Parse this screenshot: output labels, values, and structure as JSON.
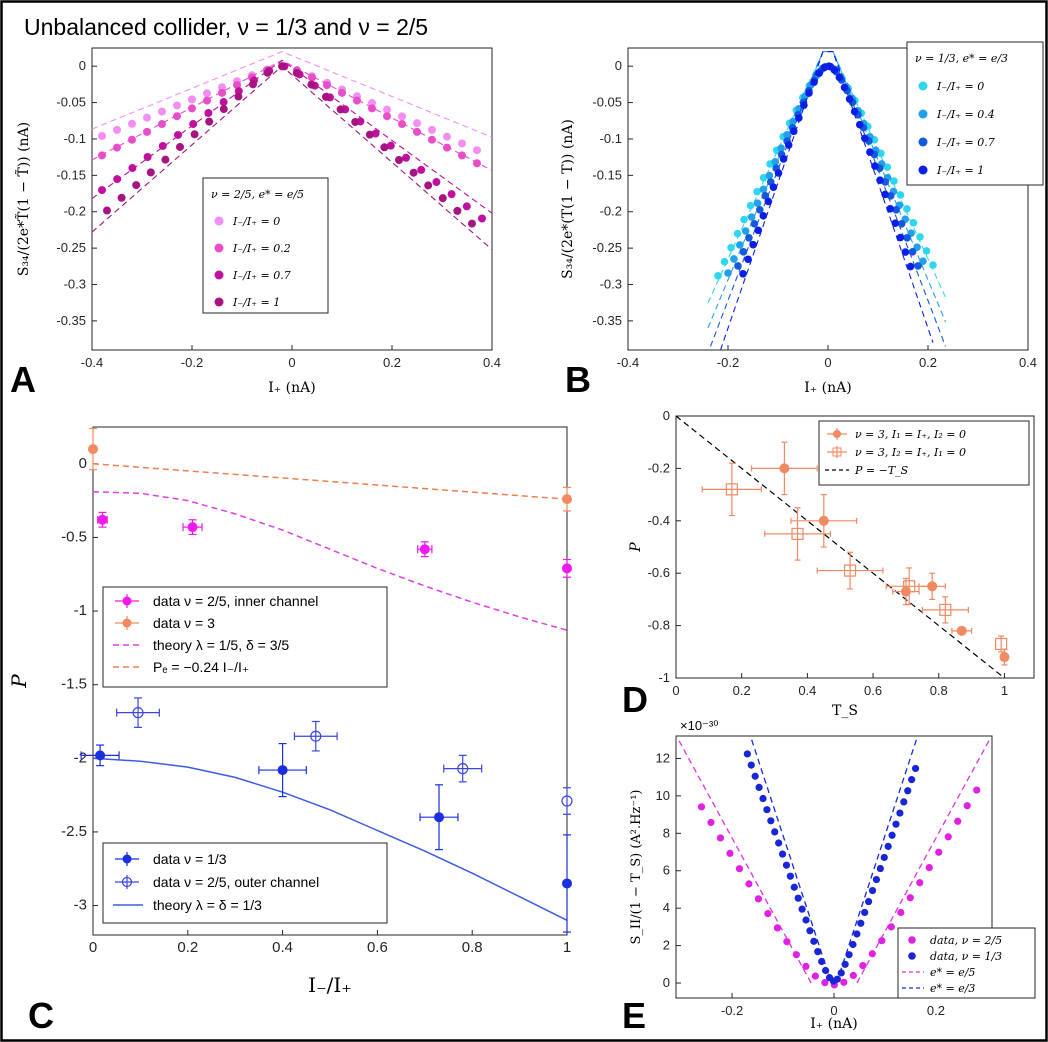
{
  "title": "Unbalanced collider, ν = 1/3 and ν = 2/5",
  "chart_data": [
    {
      "panel": "A",
      "type": "scatter",
      "xlabel": "I₊ (nA)",
      "ylabel": "S₃₄/(2e*T̃(1 − T̃)) (nA)",
      "xlim": [
        -0.4,
        0.4
      ],
      "ylim": [
        -0.39,
        0.025
      ],
      "xticks": [
        -0.4,
        -0.2,
        0,
        0.2,
        0.4
      ],
      "yticks": [
        0,
        -0.05,
        -0.1,
        -0.15,
        -0.2,
        -0.25,
        -0.3,
        -0.35
      ],
      "legend_title": "ν = 2/5, e* = e/5",
      "legend_position": "center",
      "series": [
        {
          "name": "I₋/I₊ = 0",
          "color": "#f58ef3",
          "xmin": -0.38,
          "xmax": 0.37,
          "x0": -0.02,
          "slope_left": 0.28,
          "slope_right": -0.31,
          "round": 0.018,
          "fit_slope": 0.28,
          "fit_peak": 0.02
        },
        {
          "name": "I₋/I₊ = 0.2",
          "color": "#e94ec9",
          "xmin": -0.38,
          "xmax": 0.37,
          "x0": -0.02,
          "slope_left": 0.36,
          "slope_right": -0.36,
          "round": 0.02,
          "fit_slope": 0.36,
          "fit_peak": 0.008
        },
        {
          "name": "I₋/I₊ = 0.7",
          "color": "#c0109f",
          "xmin": -0.38,
          "xmax": 0.38,
          "x0": -0.02,
          "slope_left": 0.5,
          "slope_right": -0.55,
          "round": 0.02,
          "fit_slope": 0.5,
          "fit_peak": 0.008
        },
        {
          "name": "I₋/I₊ = 1",
          "color": "#a6157f",
          "xmin": -0.37,
          "xmax": 0.36,
          "x0": -0.02,
          "slope_left": 0.6,
          "slope_right": -0.6,
          "round": 0.02,
          "fit_slope": 0.6,
          "fit_peak": 0.0
        }
      ]
    },
    {
      "panel": "B",
      "type": "scatter",
      "xlabel": "I₊ (nA)",
      "ylabel": "S₃₄/(2e*(T(1 − T)) (nA)",
      "xlim": [
        -0.4,
        0.4
      ],
      "ylim": [
        -0.39,
        0.025
      ],
      "xticks": [
        -0.4,
        -0.2,
        0,
        0.2,
        0.4
      ],
      "yticks": [
        0,
        -0.05,
        -0.1,
        -0.15,
        -0.2,
        -0.25,
        -0.3,
        -0.35
      ],
      "legend_title": "ν = 1/3, e* = e/3",
      "legend_position": "top-right",
      "series": [
        {
          "name": "I₋/I₊ = 0",
          "color": "#2fd7ee",
          "xmin": -0.22,
          "xmax": 0.21,
          "slope": 1.5
        },
        {
          "name": "I₋/I₊ = 0.4",
          "color": "#22a0ec",
          "xmin": -0.2,
          "xmax": 0.19,
          "slope": 1.65
        },
        {
          "name": "I₋/I₊ = 0.7",
          "color": "#1458dc",
          "xmin": -0.18,
          "xmax": 0.18,
          "slope": 1.8
        },
        {
          "name": "I₋/I₊ = 1",
          "color": "#0a1ee6",
          "xmin": -0.17,
          "xmax": 0.165,
          "slope": 2.0
        }
      ]
    },
    {
      "panel": "C",
      "type": "scatter",
      "xlabel": "I₋/I₊",
      "ylabel": "P",
      "xlim": [
        0,
        1
      ],
      "ylim": [
        -3.2,
        0.25
      ],
      "xticks": [
        0,
        0.2,
        0.4,
        0.6,
        0.8,
        1
      ],
      "yticks": [
        0,
        -0.5,
        -1,
        -1.5,
        -2,
        -2.5,
        -3
      ],
      "legends": [
        {
          "position": "center-left",
          "entries": [
            "data ν = 2/5, inner channel",
            "data ν = 3",
            "theory λ = 1/5, δ = 3/5",
            "Pₑ = −0.24 I₋/I₊"
          ]
        },
        {
          "position": "bottom-left",
          "entries": [
            "data ν = 1/3",
            "data ν = 2/5, outer channel",
            "theory λ = δ = 1/3"
          ]
        }
      ],
      "series": [
        {
          "name": "data ν = 2/5, inner channel",
          "color": "#f019ee",
          "marker": "filled",
          "x": [
            0.02,
            0.21,
            0.7,
            1.0
          ],
          "y": [
            -0.38,
            -0.43,
            -0.58,
            -0.71
          ],
          "xerr": [
            0.01,
            0.02,
            0.015,
            0.005
          ],
          "yerr": [
            0.05,
            0.05,
            0.05,
            0.06
          ]
        },
        {
          "name": "data ν = 3",
          "color": "#f38a5f",
          "marker": "filled",
          "x": [
            0.0,
            1.0
          ],
          "y": [
            0.1,
            -0.24
          ],
          "xerr": [
            0.0,
            0.0
          ],
          "yerr": [
            0.14,
            0.08
          ]
        },
        {
          "name": "data ν = 1/3",
          "color": "#1b2ee0",
          "marker": "filled",
          "x": [
            0.015,
            0.4,
            0.73,
            1.0
          ],
          "y": [
            -1.98,
            -2.08,
            -2.4,
            -2.85
          ],
          "xerr": [
            0.04,
            0.05,
            0.04,
            0.0
          ],
          "yerr": [
            0.07,
            0.18,
            0.22,
            0.33
          ]
        },
        {
          "name": "data ν = 2/5, outer channel",
          "color": "#3a46e0",
          "marker": "open",
          "x": [
            0.095,
            0.47,
            0.78,
            1.0
          ],
          "y": [
            -1.69,
            -1.85,
            -2.07,
            -2.29
          ],
          "xerr": [
            0.045,
            0.045,
            0.04,
            0.0
          ],
          "yerr": [
            0.1,
            0.1,
            0.09,
            0.09
          ]
        }
      ],
      "lines": [
        {
          "name": "theory λ = 1/5, δ = 3/5",
          "color": "#e040e2",
          "dash": true,
          "x": [
            0,
            0.1,
            0.2,
            0.3,
            0.4,
            0.5,
            0.6,
            0.7,
            0.8,
            0.9,
            1.0
          ],
          "y": [
            -0.19,
            -0.2,
            -0.25,
            -0.34,
            -0.45,
            -0.58,
            -0.71,
            -0.83,
            -0.94,
            -1.04,
            -1.13
          ]
        },
        {
          "name": "Pₑ = −0.24 I₋/I₊",
          "color": "#ef7f50",
          "dash": true,
          "x": [
            0,
            1
          ],
          "y": [
            0,
            -0.24
          ]
        },
        {
          "name": "theory λ = δ = 1/3",
          "color": "#3c5be6",
          "dash": false,
          "x": [
            0,
            0.1,
            0.2,
            0.3,
            0.4,
            0.5,
            0.6,
            0.7,
            0.8,
            0.9,
            1.0
          ],
          "y": [
            -2.0,
            -2.02,
            -2.06,
            -2.13,
            -2.23,
            -2.35,
            -2.49,
            -2.63,
            -2.78,
            -2.94,
            -3.1
          ]
        }
      ]
    },
    {
      "panel": "D",
      "type": "scatter",
      "xlabel": "T_S",
      "ylabel": "P",
      "xlim": [
        0,
        1.09
      ],
      "ylim": [
        -1,
        0
      ],
      "xticks": [
        0,
        0.2,
        0.4,
        0.6,
        0.8,
        1
      ],
      "yticks": [
        0,
        -0.2,
        -0.4,
        -0.6,
        -0.8,
        -1
      ],
      "legend_position": "top-right",
      "series": [
        {
          "name": "ν = 3, I₁ = I₊, I₂ = 0",
          "color": "#f08a63",
          "marker": "filled",
          "x": [
            0.33,
            0.45,
            0.7,
            0.78,
            0.87,
            1.0
          ],
          "y": [
            -0.2,
            -0.4,
            -0.67,
            -0.65,
            -0.82,
            -0.92
          ],
          "xerr": [
            0.1,
            0.1,
            0.04,
            0.04,
            0.03,
            0.0
          ],
          "yerr": [
            0.1,
            0.1,
            0.05,
            0.05,
            0.0,
            0.03
          ]
        },
        {
          "name": "ν = 3, I₂ = I₊, I₁ = 0",
          "color": "#f08a63",
          "marker": "open",
          "x": [
            0.17,
            0.37,
            0.53,
            0.71,
            0.82,
            0.99
          ],
          "y": [
            -0.28,
            -0.45,
            -0.59,
            -0.65,
            -0.74,
            -0.87
          ],
          "xerr": [
            0.09,
            0.1,
            0.1,
            0.07,
            0.07,
            0.0
          ],
          "yerr": [
            0.1,
            0.1,
            0.07,
            0.07,
            0.05,
            0.03
          ]
        }
      ],
      "lines": [
        {
          "name": "P = −T_S",
          "color": "#000000",
          "dash": true,
          "x": [
            0,
            1
          ],
          "y": [
            0,
            -1
          ]
        }
      ]
    },
    {
      "panel": "E",
      "type": "scatter",
      "xlabel": "I₊ (nA)",
      "ylabel": "S_II/(1 − T_S) (A².Hz⁻¹)",
      "y_multiplier": "×10⁻³⁰",
      "xlim": [
        -0.31,
        0.31
      ],
      "ylim": [
        -0.8,
        13.2
      ],
      "xticks": [
        -0.2,
        0,
        0.2
      ],
      "yticks": [
        0,
        2,
        4,
        6,
        8,
        10,
        12
      ],
      "legend_position": "bottom-right",
      "series": [
        {
          "name": "data, ν = 2/5",
          "color": "#e021e3",
          "xmin": -0.26,
          "xmax": 0.28
        },
        {
          "name": "data, ν = 1/3",
          "color": "#1726d6",
          "xmin": -0.17,
          "xmax": 0.16
        }
      ],
      "lines": [
        {
          "name": "e* = e/5",
          "color": "#e033e0",
          "dash": true,
          "slope": 50,
          "x0": 0.045
        },
        {
          "name": "e* = e/3",
          "color": "#1a2bd6",
          "dash": true,
          "slope": 83,
          "x0": 0.005
        }
      ]
    }
  ]
}
